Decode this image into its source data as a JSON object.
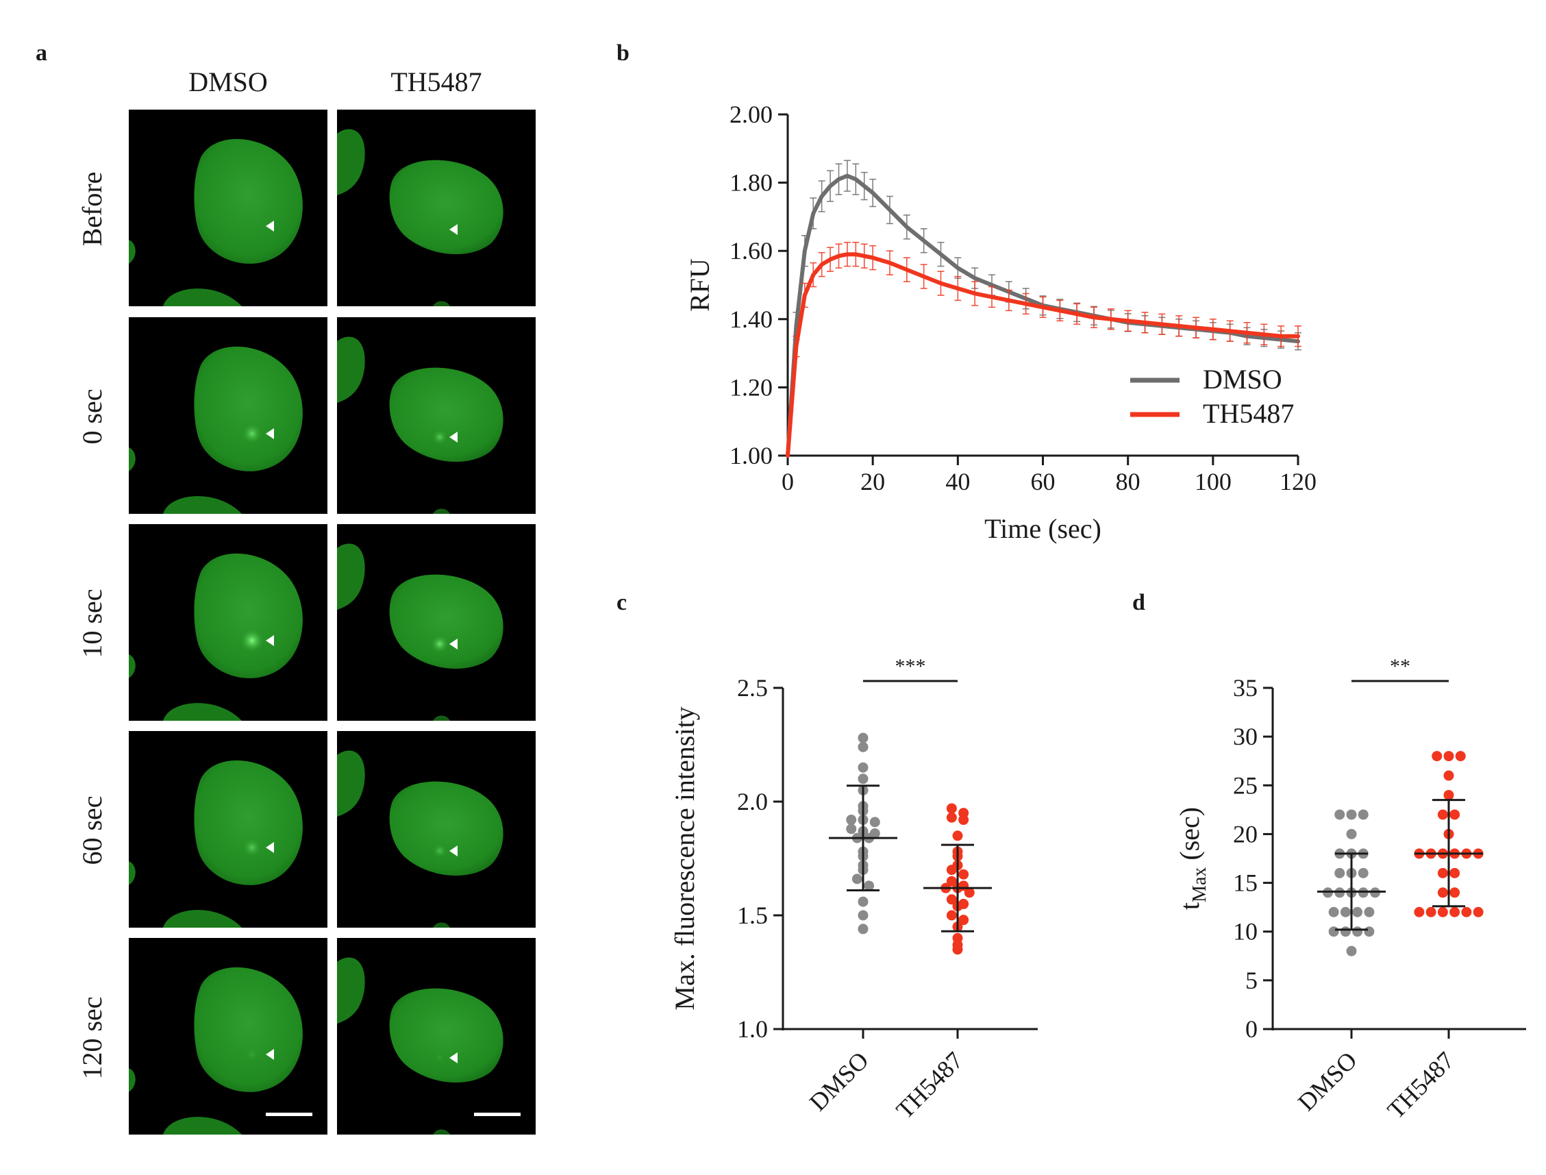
{
  "panel_letters": {
    "a": "a",
    "b": "b",
    "c": "c",
    "d": "d"
  },
  "panel_a": {
    "columns": [
      "DMSO",
      "TH5487"
    ],
    "rows": [
      "Before",
      "0 sec",
      "10 sec",
      "60 sec",
      "120 sec"
    ],
    "colors": {
      "background": "#000000",
      "nucleus": "#1f8a1f",
      "arrowhead": "#ffffff",
      "scale_bar": "#ffffff"
    }
  },
  "chart_data": [
    {
      "panel": "b",
      "type": "line",
      "xlabel": "Time (sec)",
      "ylabel": "RFU",
      "xlim": [
        0,
        120
      ],
      "ylim": [
        1.0,
        2.0
      ],
      "x_ticks": [
        "0",
        "20",
        "40",
        "60",
        "80",
        "100",
        "120"
      ],
      "y_ticks": [
        "1.00",
        "1.20",
        "1.40",
        "1.60",
        "1.80",
        "2.00"
      ],
      "legend_position": "bottom-right",
      "series": [
        {
          "name": "DMSO",
          "color": "#6e6e6e",
          "x": [
            0,
            2,
            4,
            6,
            8,
            10,
            12,
            14,
            16,
            18,
            20,
            24,
            28,
            32,
            36,
            40,
            44,
            48,
            52,
            56,
            60,
            64,
            68,
            72,
            76,
            80,
            84,
            88,
            92,
            96,
            100,
            104,
            108,
            112,
            116,
            120
          ],
          "y": [
            1.0,
            1.38,
            1.6,
            1.71,
            1.76,
            1.79,
            1.81,
            1.82,
            1.81,
            1.79,
            1.77,
            1.72,
            1.67,
            1.63,
            1.59,
            1.55,
            1.52,
            1.5,
            1.48,
            1.46,
            1.44,
            1.43,
            1.42,
            1.41,
            1.4,
            1.39,
            1.385,
            1.38,
            1.375,
            1.37,
            1.365,
            1.36,
            1.35,
            1.345,
            1.34,
            1.335
          ],
          "err": [
            0,
            0.04,
            0.045,
            0.045,
            0.045,
            0.045,
            0.045,
            0.045,
            0.045,
            0.04,
            0.04,
            0.04,
            0.035,
            0.035,
            0.035,
            0.03,
            0.03,
            0.03,
            0.03,
            0.03,
            0.028,
            0.028,
            0.027,
            0.027,
            0.026,
            0.026,
            0.025,
            0.025,
            0.025,
            0.025,
            0.025,
            0.025,
            0.025,
            0.025,
            0.025,
            0.025
          ]
        },
        {
          "name": "TH5487",
          "color": "#f0361e",
          "x": [
            0,
            2,
            4,
            6,
            8,
            10,
            12,
            14,
            16,
            18,
            20,
            24,
            28,
            32,
            36,
            40,
            44,
            48,
            52,
            56,
            60,
            64,
            68,
            72,
            76,
            80,
            84,
            88,
            92,
            96,
            100,
            104,
            108,
            112,
            116,
            120
          ],
          "y": [
            1.0,
            1.32,
            1.47,
            1.53,
            1.56,
            1.575,
            1.585,
            1.59,
            1.59,
            1.585,
            1.58,
            1.565,
            1.545,
            1.525,
            1.505,
            1.49,
            1.475,
            1.465,
            1.455,
            1.445,
            1.435,
            1.425,
            1.415,
            1.405,
            1.4,
            1.395,
            1.39,
            1.385,
            1.38,
            1.375,
            1.37,
            1.365,
            1.36,
            1.355,
            1.35,
            1.35
          ],
          "err": [
            0,
            0.03,
            0.035,
            0.035,
            0.035,
            0.035,
            0.035,
            0.035,
            0.035,
            0.035,
            0.035,
            0.035,
            0.035,
            0.035,
            0.035,
            0.035,
            0.035,
            0.03,
            0.03,
            0.03,
            0.03,
            0.03,
            0.03,
            0.03,
            0.03,
            0.03,
            0.03,
            0.03,
            0.03,
            0.03,
            0.03,
            0.03,
            0.03,
            0.03,
            0.03,
            0.03
          ]
        }
      ]
    },
    {
      "panel": "c",
      "type": "scatter",
      "ylabel": "Max. fluorescence intensity",
      "ylim": [
        1.0,
        2.5
      ],
      "y_ticks": [
        "1.0",
        "1.5",
        "2.0",
        "2.5"
      ],
      "categories": [
        "DMSO",
        "TH5487"
      ],
      "significance": "***",
      "series": [
        {
          "name": "DMSO",
          "color": "#8a8a8a",
          "points": [
            2.28,
            2.24,
            2.15,
            2.1,
            2.05,
            1.98,
            1.96,
            1.92,
            1.92,
            1.91,
            1.88,
            1.87,
            1.86,
            1.84,
            1.84,
            1.78,
            1.76,
            1.72,
            1.7,
            1.66,
            1.63,
            1.56,
            1.5,
            1.44
          ],
          "mean": 1.84,
          "sd_low": 1.61,
          "sd_high": 2.07
        },
        {
          "name": "TH5487",
          "color": "#f0361e",
          "points": [
            1.97,
            1.95,
            1.93,
            1.92,
            1.85,
            1.78,
            1.76,
            1.72,
            1.7,
            1.68,
            1.65,
            1.63,
            1.62,
            1.62,
            1.6,
            1.57,
            1.55,
            1.54,
            1.5,
            1.48,
            1.45,
            1.4,
            1.37,
            1.35
          ],
          "mean": 1.62,
          "sd_low": 1.43,
          "sd_high": 1.81
        }
      ]
    },
    {
      "panel": "d",
      "type": "scatter",
      "ylabel_main": "t",
      "ylabel_sub": "Max",
      "ylabel_rest": " (sec)",
      "ylim": [
        0,
        35
      ],
      "y_ticks": [
        "0",
        "5",
        "10",
        "15",
        "20",
        "25",
        "30",
        "35"
      ],
      "categories": [
        "DMSO",
        "TH5487"
      ],
      "significance": "**",
      "series": [
        {
          "name": "DMSO",
          "color": "#8a8a8a",
          "points": [
            22,
            22,
            22,
            20,
            18,
            18,
            18,
            16,
            16,
            16,
            14,
            14,
            14,
            14,
            14,
            12,
            12,
            12,
            12,
            10,
            10,
            10,
            10,
            8
          ],
          "mean": 14.1,
          "sd_low": 10.2,
          "sd_high": 18.0
        },
        {
          "name": "TH5487",
          "color": "#f0361e",
          "points": [
            28,
            28,
            28,
            26,
            24,
            22,
            22,
            20,
            18,
            18,
            18,
            18,
            18,
            18,
            16,
            16,
            14,
            14,
            12,
            12,
            12,
            12,
            12,
            12
          ],
          "mean": 18.0,
          "sd_low": 12.6,
          "sd_high": 23.5
        }
      ]
    }
  ]
}
